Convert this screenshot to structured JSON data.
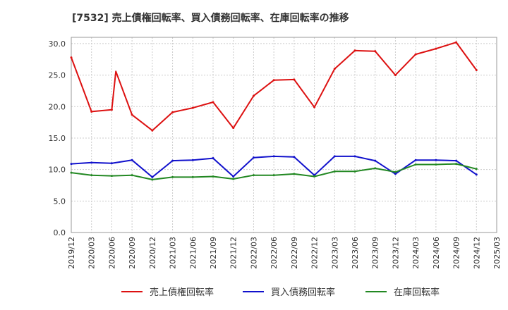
{
  "chart_data": {
    "type": "line",
    "title": "[7532]  売上債権回転率、買入債務回転率、在庫回転率の推移",
    "xlabel": "",
    "ylabel": "",
    "ylim": [
      0,
      31
    ],
    "yticks": [
      "0.0",
      "5.0",
      "10.0",
      "15.0",
      "20.0",
      "25.0",
      "30.0"
    ],
    "ytick_values": [
      0,
      5,
      10,
      15,
      20,
      25,
      30
    ],
    "grid": true,
    "legend_position": "bottom",
    "x_tick_labels": [
      "2019/12",
      "2020/03",
      "2020/06",
      "2020/09",
      "2020/12",
      "2021/03",
      "2021/06",
      "2021/09",
      "2021/12",
      "2022/03",
      "2022/06",
      "2022/09",
      "2022/12",
      "2023/03",
      "2023/06",
      "2023/09",
      "2023/12",
      "2024/03",
      "2024/06",
      "2024/09",
      "2024/12",
      "2025/03"
    ],
    "x": [
      "2019/12",
      "2020/03",
      "2020/06",
      "2020/09",
      "2020/12",
      "2021/03",
      "2021/06",
      "2021/09",
      "2021/12",
      "2022/03",
      "2022/06",
      "2022/09",
      "2022/12",
      "2023/03",
      "2023/06",
      "2023/09",
      "2023/12",
      "2024/03",
      "2024/06",
      "2024/09",
      "2024/12"
    ],
    "series": [
      {
        "name": "売上債権回転率",
        "color": "#dd1111",
        "values": [
          27.8,
          19.2,
          19.5,
          18.7,
          16.2,
          19.1,
          19.8,
          20.7,
          16.6,
          21.7,
          24.2,
          24.3,
          19.9,
          26.0,
          28.9,
          28.8,
          25.0,
          28.3,
          29.2,
          30.2,
          25.8
        ],
        "extra_points": [
          {
            "x": 2.2,
            "y": 25.6
          }
        ]
      },
      {
        "name": "買入債務回転率",
        "color": "#1111cc",
        "values": [
          10.9,
          11.1,
          11.0,
          11.5,
          8.8,
          11.4,
          11.5,
          11.8,
          8.9,
          11.9,
          12.1,
          12.0,
          9.1,
          12.1,
          12.1,
          11.4,
          9.3,
          11.5,
          11.5,
          11.4,
          9.2
        ],
        "extra_points": []
      },
      {
        "name": "在庫回転率",
        "color": "#228822",
        "values": [
          9.5,
          9.1,
          9.0,
          9.1,
          8.4,
          8.8,
          8.8,
          8.9,
          8.5,
          9.1,
          9.1,
          9.3,
          8.9,
          9.7,
          9.7,
          10.2,
          9.6,
          10.8,
          10.8,
          10.9,
          10.1
        ],
        "extra_points": []
      }
    ]
  }
}
